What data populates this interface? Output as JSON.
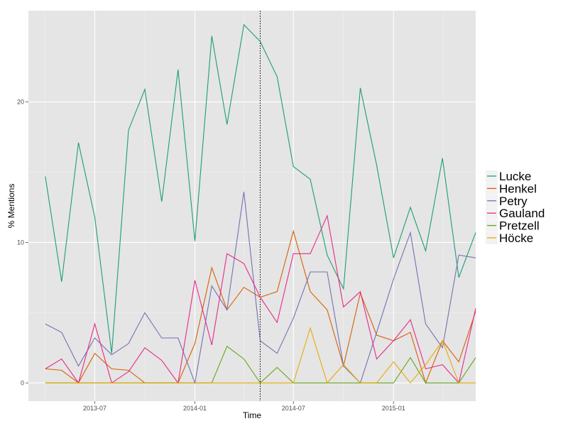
{
  "chart_data": {
    "type": "line",
    "xlabel": "Time",
    "ylabel": "% Mentions",
    "x_ticks": [
      "2013-07",
      "2014-01",
      "2014-07",
      "2015-01"
    ],
    "y_ticks": [
      0,
      10,
      20
    ],
    "x_range": [
      "2013-03-01",
      "2015-06-01"
    ],
    "ylim": [
      -1.3,
      26.5
    ],
    "event_line_x": "2014-05-01",
    "grid": true,
    "legend_position": "right",
    "x": [
      "2013-04",
      "2013-05",
      "2013-06",
      "2013-07",
      "2013-08",
      "2013-09",
      "2013-10",
      "2013-11",
      "2013-12",
      "2014-01",
      "2014-02",
      "2014-03",
      "2014-04",
      "2014-05",
      "2014-06",
      "2014-07",
      "2014-08",
      "2014-09",
      "2014-10",
      "2014-11",
      "2014-12",
      "2015-01",
      "2015-02",
      "2015-03",
      "2015-04",
      "2015-05",
      "2015-06"
    ],
    "series": [
      {
        "name": "Lucke",
        "color": "#1b9e77",
        "values": [
          14.7,
          7.2,
          17.1,
          11.8,
          2.1,
          18.0,
          20.9,
          12.9,
          22.3,
          10.1,
          24.7,
          18.4,
          25.5,
          24.3,
          21.8,
          15.4,
          14.5,
          9.1,
          6.7,
          21.0,
          15.5,
          8.9,
          12.5,
          9.4,
          16.0,
          7.5,
          10.7
        ]
      },
      {
        "name": "Henkel",
        "color": "#d95f02",
        "values": [
          1.0,
          0.9,
          0.0,
          2.1,
          1.0,
          0.9,
          0.0,
          0.0,
          0.0,
          2.8,
          8.2,
          5.2,
          6.8,
          6.1,
          6.5,
          10.8,
          6.5,
          5.2,
          1.2,
          6.4,
          3.4,
          3.0,
          3.6,
          0.0,
          3.0,
          1.5,
          5.1
        ]
      },
      {
        "name": "Petry",
        "color": "#7570b3",
        "values": [
          4.2,
          3.6,
          1.2,
          3.2,
          2.0,
          2.8,
          5.0,
          3.2,
          3.2,
          0.0,
          6.9,
          5.2,
          13.6,
          3.0,
          2.1,
          4.6,
          7.9,
          7.9,
          1.2,
          0.0,
          3.6,
          7.4,
          10.7,
          4.2,
          2.5,
          9.1,
          8.9
        ]
      },
      {
        "name": "Gauland",
        "color": "#e7298a",
        "values": [
          1.0,
          1.7,
          0.0,
          4.2,
          0.0,
          0.8,
          2.5,
          1.6,
          0.0,
          7.3,
          2.7,
          9.2,
          8.5,
          6.1,
          4.3,
          9.2,
          9.2,
          11.9,
          5.4,
          6.5,
          1.7,
          3.0,
          4.5,
          1.0,
          1.3,
          0.0,
          5.3
        ]
      },
      {
        "name": "Pretzell",
        "color": "#66a61e",
        "values": [
          0,
          0,
          0,
          0,
          0,
          0,
          0,
          0,
          0,
          0,
          0,
          2.6,
          1.7,
          0,
          1.1,
          0,
          0,
          0,
          0,
          0,
          0,
          0,
          1.8,
          0,
          0,
          0,
          1.8
        ]
      },
      {
        "name": "Höcke",
        "color": "#e6ab02",
        "values": [
          0,
          0,
          0,
          0,
          0,
          0,
          0,
          0,
          0,
          0,
          0,
          0,
          0,
          0,
          0,
          0,
          3.9,
          0,
          1.3,
          0,
          0,
          1.5,
          0,
          1.3,
          3.0,
          0,
          0
        ]
      }
    ]
  }
}
